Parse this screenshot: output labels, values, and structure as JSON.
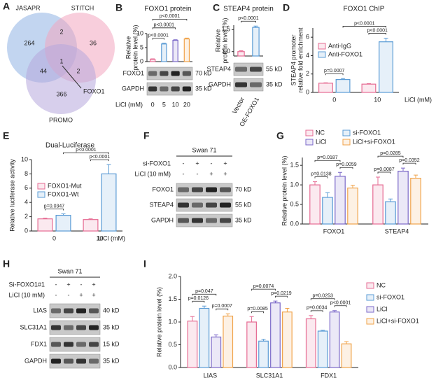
{
  "venn": {
    "label": "A",
    "sets": [
      "JASAPR",
      "STITCH",
      "PROMO"
    ],
    "counts": [
      264,
      2,
      36,
      44,
      1,
      2,
      366
    ],
    "callout": "FOXO1"
  },
  "chart_data": [
    {
      "type": "bar",
      "label": "B",
      "title": "FOXO1 protein",
      "ylabel": [
        "Relative",
        "protein level (%)"
      ],
      "categories": [
        "0",
        "5",
        "10",
        "20"
      ],
      "xlabel": "LiCl (mM)",
      "values": [
        0.8,
        6.3,
        7.6,
        8.1
      ],
      "errors": [
        0.2,
        0.3,
        0.2,
        0.3
      ],
      "colors": [
        "#e66b93",
        "#5a9bd5",
        "#7b68c8",
        "#f0a34a"
      ],
      "ylim": [
        0,
        10
      ],
      "yticks": [
        0,
        5,
        10
      ],
      "annotations": [
        "p<0.0001",
        "p<0.0001",
        "p<0.0001"
      ],
      "blot_bands": [
        {
          "name": "FOXO1",
          "size": "70 kD"
        },
        {
          "name": "GAPDH",
          "size": "35 kD"
        }
      ]
    },
    {
      "type": "bar",
      "label": "C",
      "title": "STEAP4 protein",
      "ylabel": [
        "Relative",
        "protein level (%)"
      ],
      "categories": [
        "Vector",
        "OE-FOXO1"
      ],
      "values": [
        1.0,
        1.55
      ],
      "errors": [
        0.02,
        0.03
      ],
      "colors": [
        "#e66b93",
        "#5a9bd5"
      ],
      "ylim": [
        0.9,
        1.6
      ],
      "yticks": [
        {
          "value": 1,
          "label": "1.0"
        },
        1.5
      ],
      "annotations": [
        "p<0.0001"
      ],
      "blot_bands": [
        {
          "name": "STEAP4",
          "size": "55 kD"
        },
        {
          "name": "GAPDH",
          "size": "35 kD"
        }
      ]
    },
    {
      "type": "bar",
      "label": "D",
      "title": "FOXO1 ChIP",
      "ylabel": [
        "STEAP4 promoter",
        "relative fold enrichment"
      ],
      "categories": [
        "0",
        "10"
      ],
      "xlabel": "LiCl (mM)",
      "series": [
        {
          "name": "Anti-IgG",
          "color": "#e66b93",
          "values": [
            1.0,
            0.9
          ],
          "errors": [
            0.05,
            0.05
          ]
        },
        {
          "name": "Anti-FOXO1",
          "color": "#5a9bd5",
          "values": [
            1.4,
            5.5
          ],
          "errors": [
            0.1,
            0.4
          ]
        }
      ],
      "ylim": [
        0,
        7
      ],
      "yticks": [
        0,
        2,
        4,
        6
      ],
      "annotations": [
        "p=0.0007",
        "p<0.0001",
        "p<0.0001"
      ]
    },
    {
      "type": "bar",
      "label": "E",
      "title": "Dual-Luciferase",
      "ylabel": [
        "Relative luciferase activity"
      ],
      "categories": [
        "0",
        "10"
      ],
      "xlabel": "LiCl (mM)",
      "series": [
        {
          "name": "FOXO1-Mut",
          "color": "#e66b93",
          "values": [
            1.7,
            1.6
          ],
          "errors": [
            0.1,
            0.1
          ]
        },
        {
          "name": "FOXO1-Wt",
          "color": "#5a9bd5",
          "values": [
            2.2,
            8.0
          ],
          "errors": [
            0.2,
            1.3
          ]
        }
      ],
      "ylim": [
        0,
        10
      ],
      "yticks": [
        0,
        2,
        4,
        6,
        8,
        10
      ],
      "annotations": [
        "p=0.0347",
        "p<0.0001",
        "p<0.0001"
      ]
    },
    {
      "type": "bar",
      "label": "G",
      "ylabel": [
        "Relative protein level (%)"
      ],
      "categories": [
        "FOXO1",
        "STEAP4"
      ],
      "series": [
        {
          "name": "NC",
          "color": "#e66b93",
          "values": [
            1.0,
            1.0
          ],
          "errors": [
            0.08,
            0.2
          ]
        },
        {
          "name": "si-FOXO1",
          "color": "#5a9bd5",
          "values": [
            0.68,
            0.57
          ],
          "errors": [
            0.12,
            0.07
          ]
        },
        {
          "name": "LiCl",
          "color": "#7b68c8",
          "values": [
            1.22,
            1.35
          ],
          "errors": [
            0.1,
            0.08
          ]
        },
        {
          "name": "LiCl+si-FOXO1",
          "color": "#f0a34a",
          "values": [
            0.92,
            1.17
          ],
          "errors": [
            0.07,
            0.08
          ]
        }
      ],
      "ylim": [
        0,
        1.7
      ],
      "yticks": [
        {
          "value": 0,
          "label": "0.0"
        },
        0.5,
        {
          "value": 1,
          "label": "1.0"
        },
        1.5
      ],
      "annotations": [
        "p=0.0187",
        "p=0.0059",
        "p=0.0138",
        "p=0.0285",
        "p=0.0352",
        "p=0.0087"
      ]
    },
    {
      "type": "bar",
      "label": "I",
      "ylabel": [
        "Relative protein level (%)"
      ],
      "categories": [
        "LIAS",
        "SLC31A1",
        "FDX1"
      ],
      "series": [
        {
          "name": "NC",
          "color": "#e66b93",
          "values": [
            1.02,
            1.0,
            1.07
          ],
          "errors": [
            0.1,
            0.12,
            0.07
          ]
        },
        {
          "name": "si-FOXO1",
          "color": "#5a9bd5",
          "values": [
            1.3,
            0.58,
            0.8
          ],
          "errors": [
            0.05,
            0.04,
            0.02
          ]
        },
        {
          "name": "LiCl",
          "color": "#7b68c8",
          "values": [
            0.67,
            1.42,
            1.22
          ],
          "errors": [
            0.05,
            0.04,
            0.03
          ]
        },
        {
          "name": "LiCl+si-FOXO1",
          "color": "#f0a34a",
          "values": [
            1.13,
            1.22,
            0.52
          ],
          "errors": [
            0.05,
            0.08,
            0.05
          ]
        }
      ],
      "ylim": [
        0,
        2
      ],
      "yticks": [
        {
          "value": 0,
          "label": "0.0"
        },
        0.5,
        {
          "value": 1,
          "label": "1.0"
        },
        1.5,
        {
          "value": 2,
          "label": "2.0"
        }
      ],
      "annotations": [
        "p=0.047",
        "p=0.0126",
        "p=0.0007",
        "p=0.0074",
        "p=0.0085",
        "p=0.0219",
        "p=0.0253",
        "p=0.0034",
        "p<0.0001"
      ]
    }
  ],
  "blots": [
    {
      "label": "F",
      "title": "Swan 71",
      "conditions": [
        {
          "name": "si-FOXO1",
          "signs": [
            "-",
            "+",
            "-",
            "+"
          ]
        },
        {
          "name": "LiCl (10 mM)",
          "signs": [
            "-",
            "-",
            "+",
            "+"
          ]
        }
      ],
      "bands": [
        {
          "name": "FOXO1",
          "size": "70 kD"
        },
        {
          "name": "STEAP4",
          "size": "55 kD"
        },
        {
          "name": "GAPDH",
          "size": "35 kD"
        }
      ]
    },
    {
      "label": "H",
      "title": "Swan 71",
      "conditions": [
        {
          "name": "Si-FOXO1#1",
          "signs": [
            "-",
            "+",
            "-",
            "+"
          ]
        },
        {
          "name": "LiCl (10 mM)",
          "signs": [
            "-",
            "-",
            "+",
            "+"
          ]
        }
      ],
      "bands": [
        {
          "name": "LIAS",
          "size": "40 kD"
        },
        {
          "name": "SLC31A1",
          "size": "35 kD"
        },
        {
          "name": "FDX1",
          "size": "15 kD"
        },
        {
          "name": "GAPDH",
          "size": "35 kD"
        }
      ]
    }
  ]
}
